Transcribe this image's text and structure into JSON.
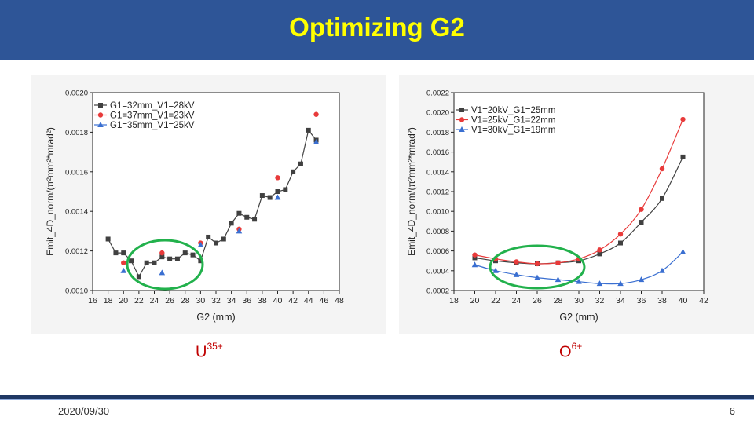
{
  "slide": {
    "title": "Optimizing G2",
    "date": "2020/09/30",
    "page_number": "6",
    "left_ion": {
      "base": "U",
      "charge": "35+"
    },
    "right_ion": {
      "base": "O",
      "charge": "6+"
    }
  },
  "highlight_color": "#22b14c",
  "chart_data": [
    {
      "type": "line",
      "xlabel": "G2 (mm)",
      "ylabel": "Emit_4D_norm/(π²mm²*mrad²)",
      "xlim": [
        16,
        48
      ],
      "ylim": [
        0.001,
        0.002
      ],
      "xticks": [
        16,
        18,
        20,
        22,
        24,
        26,
        28,
        30,
        32,
        34,
        36,
        38,
        40,
        42,
        44,
        46,
        48
      ],
      "yticks": [
        0.001,
        0.0012,
        0.0014,
        0.0016,
        0.0018,
        0.002
      ],
      "ytick_labels": [
        "0.0010",
        "0.0012",
        "0.0014",
        "0.0016",
        "0.0018",
        "0.0020"
      ],
      "legend_position": "top-left",
      "series": [
        {
          "name": "G1=32mm_V1=28kV",
          "color": "#404040",
          "marker": "square",
          "smooth": false,
          "x": [
            18,
            19,
            20,
            21,
            22,
            23,
            24,
            25,
            26,
            27,
            28,
            29,
            30,
            31,
            32,
            33,
            34,
            35,
            36,
            37,
            38,
            39,
            40,
            41,
            42,
            43,
            44,
            45
          ],
          "y": [
            0.00126,
            0.00119,
            0.00119,
            0.00115,
            0.00107,
            0.00114,
            0.00114,
            0.00117,
            0.00116,
            0.00116,
            0.00119,
            0.00118,
            0.00115,
            0.00127,
            0.00124,
            0.00126,
            0.00134,
            0.00139,
            0.00137,
            0.00136,
            0.00148,
            0.00147,
            0.0015,
            0.00151,
            0.0016,
            0.00164,
            0.00181,
            0.00176
          ]
        },
        {
          "name": "G1=37mm_V1=23kV",
          "color": "#e83a3a",
          "marker": "circle",
          "smooth": false,
          "x": [
            20,
            25,
            30,
            35,
            40,
            45
          ],
          "y": [
            0.00114,
            0.00119,
            0.00124,
            0.00131,
            0.00157,
            0.00189
          ]
        },
        {
          "name": "G1=35mm_V1=25kV",
          "color": "#3a6fd1",
          "marker": "triangle",
          "smooth": false,
          "x": [
            20,
            25,
            30,
            35,
            40,
            45
          ],
          "y": [
            0.0011,
            0.00109,
            0.00123,
            0.0013,
            0.00147,
            0.00175
          ]
        }
      ]
    },
    {
      "type": "line",
      "xlabel": "G2 (mm)",
      "ylabel": "Emit_4D_norm/(π²mm²*mrad²)",
      "xlim": [
        18,
        42
      ],
      "ylim": [
        0.0002,
        0.0022
      ],
      "xticks": [
        18,
        20,
        22,
        24,
        26,
        28,
        30,
        32,
        34,
        36,
        38,
        40,
        42
      ],
      "yticks": [
        0.0002,
        0.0004,
        0.0006,
        0.0008,
        0.001,
        0.0012,
        0.0014,
        0.0016,
        0.0018,
        0.002,
        0.0022
      ],
      "ytick_labels": [
        "0.0002",
        "0.0004",
        "0.0006",
        "0.0008",
        "0.0010",
        "0.0012",
        "0.0014",
        "0.0016",
        "0.0018",
        "0.0020",
        "0.0022"
      ],
      "legend_position": "top-left",
      "series": [
        {
          "name": "V1=20kV_G1=25mm",
          "color": "#404040",
          "marker": "square",
          "smooth": true,
          "x": [
            20,
            22,
            24,
            26,
            28,
            30,
            32,
            34,
            36,
            38,
            40
          ],
          "y": [
            0.00053,
            0.0005,
            0.00048,
            0.00047,
            0.00048,
            0.0005,
            0.00057,
            0.00068,
            0.00089,
            0.00113,
            0.00155
          ]
        },
        {
          "name": "V1=25kV_G1=22mm",
          "color": "#e83a3a",
          "marker": "circle",
          "smooth": true,
          "x": [
            20,
            22,
            24,
            26,
            28,
            30,
            32,
            34,
            36,
            38,
            40
          ],
          "y": [
            0.00056,
            0.00052,
            0.00049,
            0.00047,
            0.00048,
            0.00052,
            0.00061,
            0.00077,
            0.00102,
            0.00143,
            0.00193
          ]
        },
        {
          "name": "V1=30kV_G1=19mm",
          "color": "#3a6fd1",
          "marker": "triangle",
          "smooth": true,
          "x": [
            20,
            22,
            24,
            26,
            28,
            30,
            32,
            34,
            36,
            38,
            40
          ],
          "y": [
            0.00046,
            0.0004,
            0.00036,
            0.00033,
            0.00031,
            0.00029,
            0.00027,
            0.00027,
            0.00031,
            0.0004,
            0.00059
          ]
        }
      ]
    }
  ]
}
